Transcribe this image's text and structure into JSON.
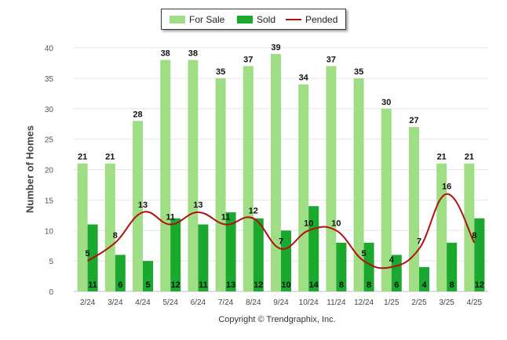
{
  "chart_data": {
    "type": "bar",
    "categories": [
      "2/24",
      "3/24",
      "4/24",
      "5/24",
      "6/24",
      "7/24",
      "8/24",
      "9/24",
      "10/24",
      "11/24",
      "12/24",
      "1/25",
      "2/25",
      "3/25",
      "4/25"
    ],
    "series": [
      {
        "name": "For Sale",
        "type": "bar",
        "color": "#a0de86",
        "values": [
          21,
          21,
          28,
          38,
          38,
          35,
          37,
          39,
          34,
          37,
          35,
          30,
          27,
          21,
          21
        ]
      },
      {
        "name": "Sold",
        "type": "bar",
        "color": "#1aa82e",
        "values": [
          11,
          6,
          5,
          12,
          11,
          13,
          12,
          10,
          14,
          8,
          8,
          6,
          4,
          8,
          12
        ]
      },
      {
        "name": "Pended",
        "type": "line",
        "color": "#b40f0f",
        "values": [
          5,
          8,
          13,
          11,
          13,
          11,
          12,
          7,
          10,
          10,
          5,
          4,
          7,
          16,
          8
        ]
      }
    ],
    "ylabel": "Number of Homes",
    "ylim": [
      0,
      40
    ],
    "yticks": [
      0,
      5,
      10,
      15,
      20,
      25,
      30,
      35,
      40
    ],
    "grid": true,
    "legend_placement": "top-center"
  },
  "legend": {
    "for_sale": "For Sale",
    "sold": "Sold",
    "pended": "Pended"
  },
  "copyright": "Copyright © Trendgraphix, Inc."
}
